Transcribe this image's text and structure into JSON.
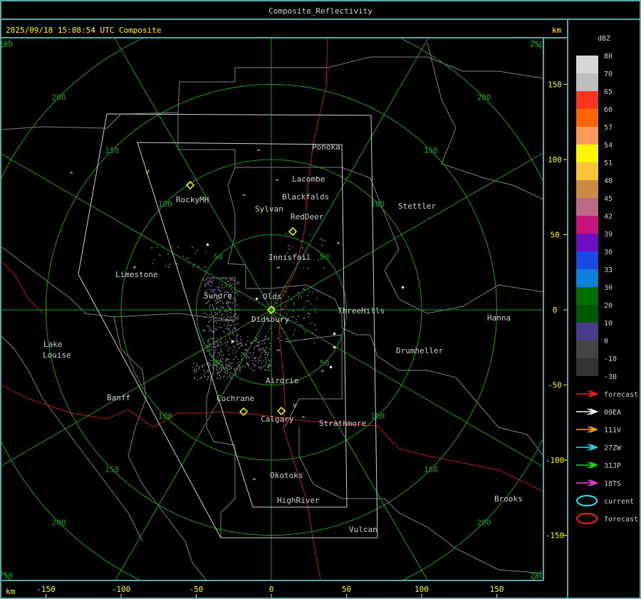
{
  "window": {
    "title": "Composite_Reflectivity"
  },
  "header": {
    "timestamp": "2025/09/18 15:08:54 UTC Composite",
    "unit_top": "km",
    "unit_bottom": "km"
  },
  "axes": {
    "x_ticks": [
      "-150",
      "-100",
      "-50",
      "0",
      "50",
      "100",
      "150"
    ],
    "x_values": [
      -150,
      -100,
      -50,
      0,
      50,
      100,
      150
    ],
    "y_ticks": [
      "150",
      "100",
      "50",
      "0",
      "-50",
      "-100",
      "-150"
    ],
    "y_values": [
      150,
      100,
      50,
      0,
      -50,
      -100,
      -150
    ],
    "color": "#ffff00"
  },
  "range_rings": {
    "labels": [
      "50",
      "100",
      "150",
      "200",
      "250"
    ],
    "values_km": [
      50,
      100,
      150,
      200,
      250
    ],
    "color": "#1e9a1e"
  },
  "cities": [
    "Ponoka",
    "Lacombe",
    "Blackfalds",
    "Sylvan",
    "RedDeer",
    "RockyMH",
    "Stettler",
    "Innisfail",
    "Limestone",
    "Sundre",
    "Olds",
    "ThreeHills",
    "Didsbury",
    "Hanna",
    "Lake",
    "Louise",
    "Drumheller",
    "Airdrie",
    "Banff",
    "Cochrane",
    "Calgary",
    "Strathmore",
    "Okotoks",
    "HighRiver",
    "Brooks",
    "Vulcan"
  ],
  "legend": {
    "title": "dBZ",
    "labels": [
      "80",
      "70",
      "65",
      "60",
      "57",
      "54",
      "51",
      "48",
      "45",
      "42",
      "39",
      "36",
      "33",
      "30",
      "20",
      "10",
      "0",
      "-10",
      "-30"
    ],
    "colors": [
      "#d6d6d6",
      "#bebebe",
      "#ff3520",
      "#ff6600",
      "#ff9a5a",
      "#fff700",
      "#fcc538",
      "#cd8a40",
      "#be6888",
      "#c8137d",
      "#6c0fc4",
      "#1b49e4",
      "#0a82dc",
      "#006f00",
      "#005800",
      "#4a3c8a",
      "#444444",
      "#343434"
    ],
    "tracks": [
      {
        "label": "forecast",
        "color": "#ff2020",
        "icon": "arrow-icon"
      },
      {
        "label": "09EA",
        "color": "#ffffff",
        "icon": "arrow-icon"
      },
      {
        "label": "111V",
        "color": "#ffa020",
        "icon": "arrow-icon"
      },
      {
        "label": "27ZW",
        "color": "#20e8f0",
        "icon": "arrow-icon"
      },
      {
        "label": "31JP",
        "color": "#20e020",
        "icon": "arrow-icon"
      },
      {
        "label": "18TS",
        "color": "#ff40e0",
        "icon": "arrow-icon"
      },
      {
        "label": "current",
        "color": "#20e8f0",
        "icon": "ellipse-icon"
      },
      {
        "label": "forecast",
        "color": "#ff2020",
        "icon": "ellipse-icon"
      }
    ]
  },
  "colors": {
    "frame": "#5aa8a8",
    "text": "#d0d0d0",
    "boundary": "#808080",
    "road": "#a01818",
    "domain": "#d0d0d0",
    "marker": "#ffff00"
  }
}
